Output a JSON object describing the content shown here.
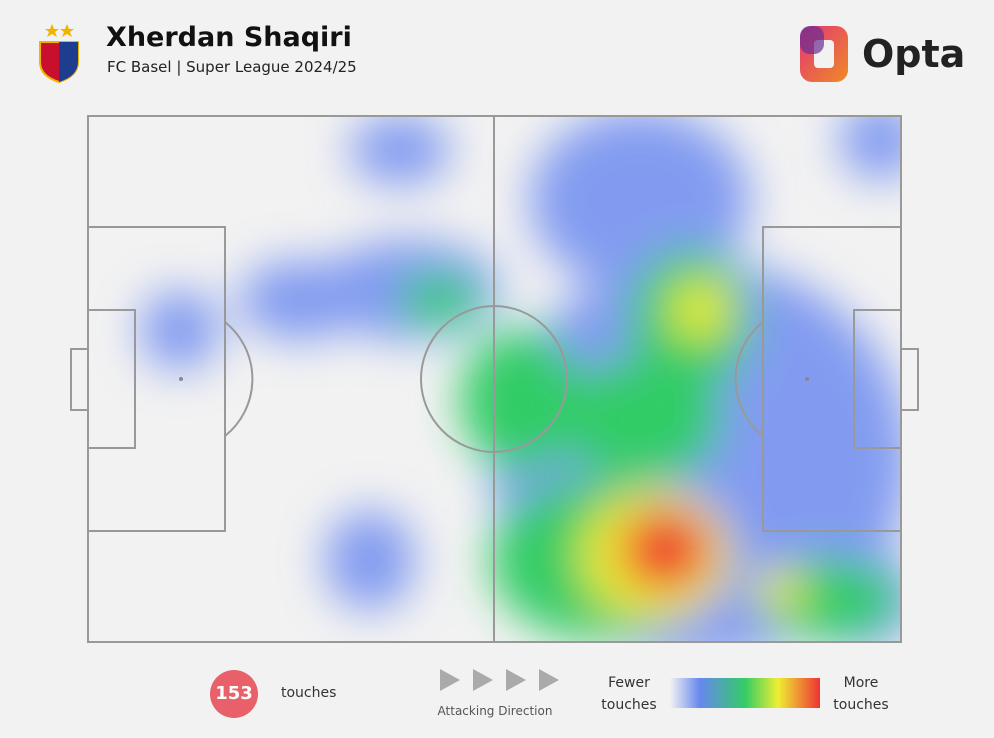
{
  "header": {
    "player": "Xherdan Shaqiri",
    "subtitle": "FC Basel | Super League 2024/25",
    "brand": "Opta"
  },
  "footer": {
    "touches_count": 153,
    "touches_label": "touches",
    "direction": "Attacking Direction",
    "legend_low": "Fewer touches",
    "legend_high": "More touches"
  }
}
